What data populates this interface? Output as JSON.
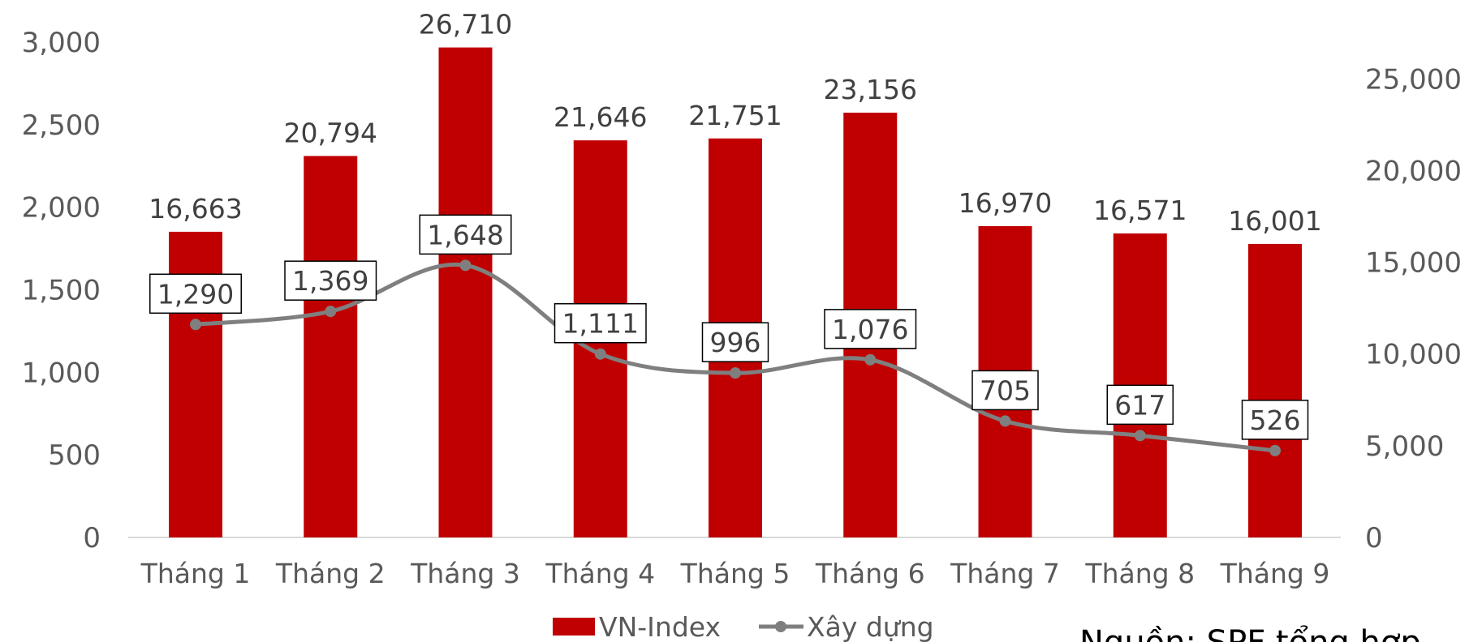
{
  "chart_data": {
    "type": "bar",
    "categories": [
      "Tháng 1",
      "Tháng 2",
      "Tháng 3",
      "Tháng 4",
      "Tháng 5",
      "Tháng 6",
      "Tháng 7",
      "Tháng 8",
      "Tháng 9"
    ],
    "series": [
      {
        "name": "VN-Index",
        "type": "bar",
        "axis": "right",
        "color": "#C00000",
        "values": [
          16663,
          20794,
          26710,
          21646,
          21751,
          23156,
          16970,
          16571,
          16001
        ],
        "labels": [
          "16,663",
          "20,794",
          "26,710",
          "21,646",
          "21,751",
          "23,156",
          "16,970",
          "16,571",
          "16,001"
        ]
      },
      {
        "name": "Xây dựng",
        "type": "line",
        "axis": "left",
        "color": "#7F7F7F",
        "values": [
          1290,
          1369,
          1648,
          1111,
          996,
          1076,
          705,
          617,
          526
        ],
        "labels": [
          "1,290",
          "1,369",
          "1,648",
          "1,111",
          "996",
          "1,076",
          "705",
          "617",
          "526"
        ]
      }
    ],
    "y_left": {
      "ylim": [
        0,
        3000
      ],
      "ticks": [
        "0",
        "500",
        "1,000",
        "1,500",
        "2,000",
        "2,500",
        "3,000"
      ]
    },
    "y_right": {
      "ylim": [
        0,
        27000
      ],
      "ticks": [
        "0",
        "5,000",
        "10,000",
        "15,000",
        "20,000",
        "25,000"
      ]
    },
    "legend_position": "bottom",
    "grid": false,
    "source_note": "Nguồn: SPF tổng hợp"
  }
}
